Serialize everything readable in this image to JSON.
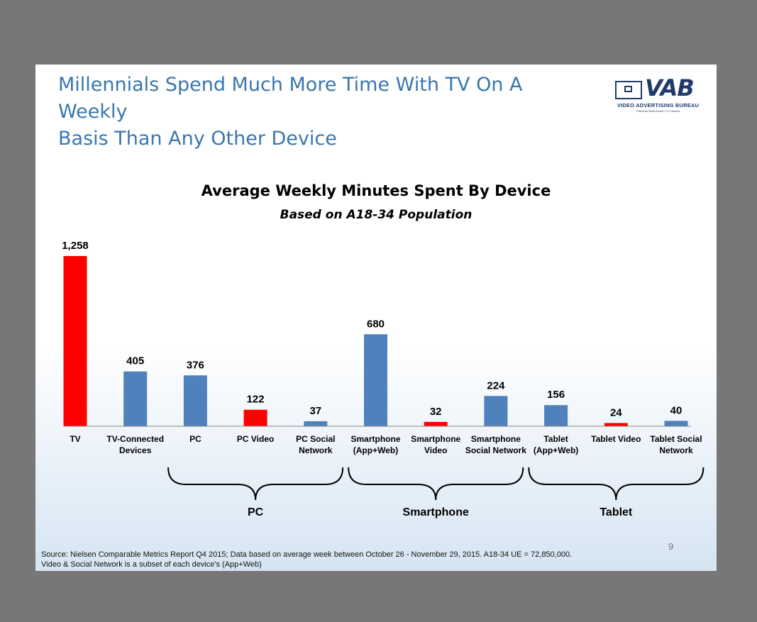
{
  "slide": {
    "title_line1": "Millennials Spend Much More Time With TV On A Weekly",
    "title_line2": "Basis Than Any Other Device",
    "page_number": "9",
    "footnote_line1": "Source: Nielsen Comparable Metrics Report Q4 2015; Data based on average week between October 26 - November 29, 2015.  A18-34 UE = 72,850,000.",
    "footnote_line2": "Video & Social Network is a subset of each device's (App+Web)"
  },
  "logo": {
    "text": "VAB",
    "subtitle": "VIDEO ADVERTISING BUREAU",
    "tagline": "Premium Multi-Screen TV Content",
    "color": "#1f3b6b"
  },
  "colors": {
    "highlight": "#ff0000",
    "normal": "#4f81bd",
    "title": "#3a76ad"
  },
  "chart_data": {
    "type": "bar",
    "title": "Average Weekly Minutes Spent By Device",
    "subtitle": "Based on A18-34 Population",
    "categories": [
      [
        "TV"
      ],
      [
        "TV-Connected",
        "Devices"
      ],
      [
        "PC"
      ],
      [
        "PC Video"
      ],
      [
        "PC Social",
        "Network"
      ],
      [
        "Smartphone",
        "(App+Web)"
      ],
      [
        "Smartphone",
        "Video"
      ],
      [
        "Smartphone",
        "Social Network"
      ],
      [
        "Tablet",
        "(App+Web)"
      ],
      [
        "Tablet Video"
      ],
      [
        "Tablet Social",
        "Network"
      ]
    ],
    "values": [
      1258,
      405,
      376,
      122,
      37,
      680,
      32,
      224,
      156,
      24,
      40
    ],
    "value_labels": [
      "1,258",
      "405",
      "376",
      "122",
      "37",
      "680",
      "32",
      "224",
      "156",
      "24",
      "40"
    ],
    "highlighted": [
      true,
      false,
      false,
      true,
      false,
      false,
      true,
      false,
      false,
      true,
      false
    ],
    "ylim": [
      0,
      1258
    ],
    "grid": false,
    "legend": "none",
    "groups": [
      {
        "label": "PC",
        "start": 2,
        "end": 4
      },
      {
        "label": "Smartphone",
        "start": 5,
        "end": 7
      },
      {
        "label": "Tablet",
        "start": 8,
        "end": 10
      }
    ]
  }
}
